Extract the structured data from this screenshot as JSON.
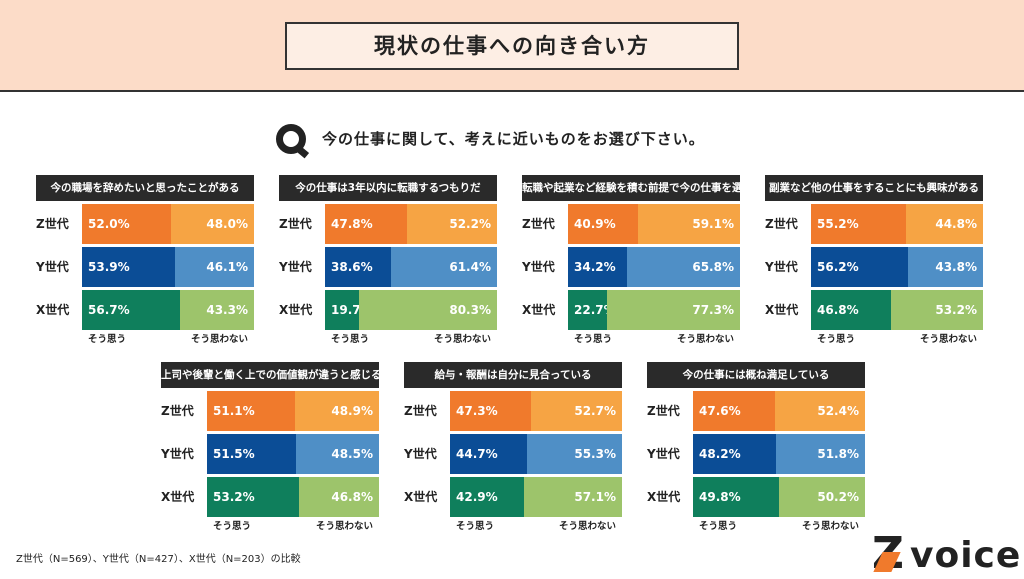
{
  "header": {
    "title": "現状の仕事への向き合い方"
  },
  "question": {
    "icon": "q-icon",
    "text": "今の仕事に関して、考えに近いものをお選び下さい。"
  },
  "chart_data": {
    "type": "bar",
    "stacked": true,
    "orientation": "horizontal",
    "generations": [
      "Z世代",
      "Y世代",
      "X世代"
    ],
    "legend": [
      "そう思う",
      "そう思わない"
    ],
    "colors": {
      "Z世代": [
        "#f07a2c",
        "#f6a444"
      ],
      "Y世代": [
        "#0b4d96",
        "#4f8fc6"
      ],
      "X世代": [
        "#0f7f5c",
        "#9dc46b"
      ]
    },
    "panels": [
      {
        "title": "今の職場を辞めたいと思ったことがある",
        "values": [
          [
            52.0,
            48.0
          ],
          [
            53.9,
            46.1
          ],
          [
            56.7,
            43.3
          ]
        ]
      },
      {
        "title": "今の仕事は3年以内に転職するつもりだ",
        "values": [
          [
            47.8,
            52.2
          ],
          [
            38.6,
            61.4
          ],
          [
            19.7,
            80.3
          ]
        ]
      },
      {
        "title": "転職や起業など経験を積む前提で今の仕事を選んだ",
        "values": [
          [
            40.9,
            59.1
          ],
          [
            34.2,
            65.8
          ],
          [
            22.7,
            77.3
          ]
        ]
      },
      {
        "title": "副業など他の仕事をすることにも興味がある",
        "values": [
          [
            55.2,
            44.8
          ],
          [
            56.2,
            43.8
          ],
          [
            46.8,
            53.2
          ]
        ]
      },
      {
        "title": "上司や後輩と働く上での価値観が違うと感じる",
        "values": [
          [
            51.1,
            48.9
          ],
          [
            51.5,
            48.5
          ],
          [
            53.2,
            46.8
          ]
        ]
      },
      {
        "title": "給与・報酬は自分に見合っている",
        "values": [
          [
            47.3,
            52.7
          ],
          [
            44.7,
            55.3
          ],
          [
            42.9,
            57.1
          ]
        ]
      },
      {
        "title": "今の仕事には概ね満足している",
        "values": [
          [
            47.6,
            52.4
          ],
          [
            48.2,
            51.8
          ],
          [
            49.8,
            50.2
          ]
        ]
      }
    ]
  },
  "footer": {
    "note": "Z世代（N=569）、Y世代（N=427）、X世代（N=203）の比較",
    "logo": "Z voice"
  }
}
